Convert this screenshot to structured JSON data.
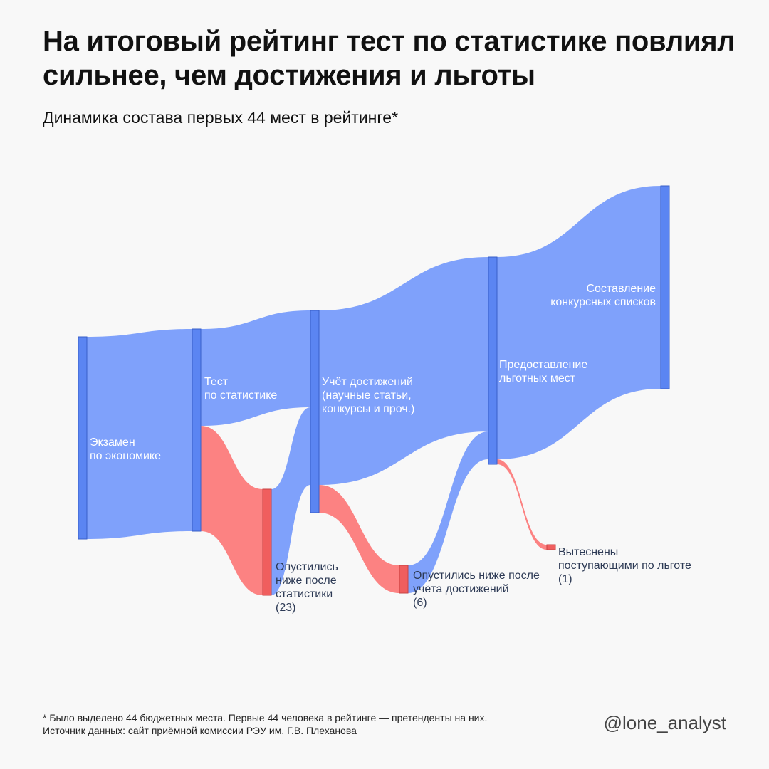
{
  "title": "На итоговый рейтинг тест по статистике повлиял сильнее, чем достижения и льготы",
  "subtitle": "Динамика состава первых 44 мест в рейтинге*",
  "footnote": {
    "line1": "* Было выделено 44 бюджетных места. Первые 44 человека в рейтинге — претенденты на них.",
    "line2": "Источник данных: сайт приёмной комиссии РЭУ им. Г.В. Плеханова"
  },
  "handle": "@lone_analyst",
  "colors": {
    "node_main": "#5b85f2",
    "node_main_stroke": "#3a5fc8",
    "flow_main": "#7fa1fb",
    "node_drop": "#f05e5e",
    "node_drop_stroke": "#c84444",
    "flow_drop": "#fc8282",
    "label_light": "#ffffff",
    "label_dark": "#2d3a55"
  },
  "nodes": {
    "exam": {
      "label": [
        "Экзамен",
        "по экономике"
      ]
    },
    "stat": {
      "label": [
        "Тест",
        "по статистике"
      ]
    },
    "drop_stat": {
      "label": [
        "Опустились",
        "ниже после",
        "статистики",
        "(23)"
      ]
    },
    "ach": {
      "label": [
        "Учёт достижений",
        "(научные статьи,",
        "конкурсы и проч.)"
      ]
    },
    "drop_ach": {
      "label": [
        "Опустились ниже после",
        "учёта достижений",
        "(6)"
      ]
    },
    "priv": {
      "label": [
        "Предоставление",
        "льготных мест"
      ]
    },
    "drop_priv": {
      "label": [
        "Вытеснены",
        "поступающими по льготе",
        "(1)"
      ]
    },
    "final": {
      "label": [
        "Составление",
        "конкурсных списков"
      ]
    }
  }
}
